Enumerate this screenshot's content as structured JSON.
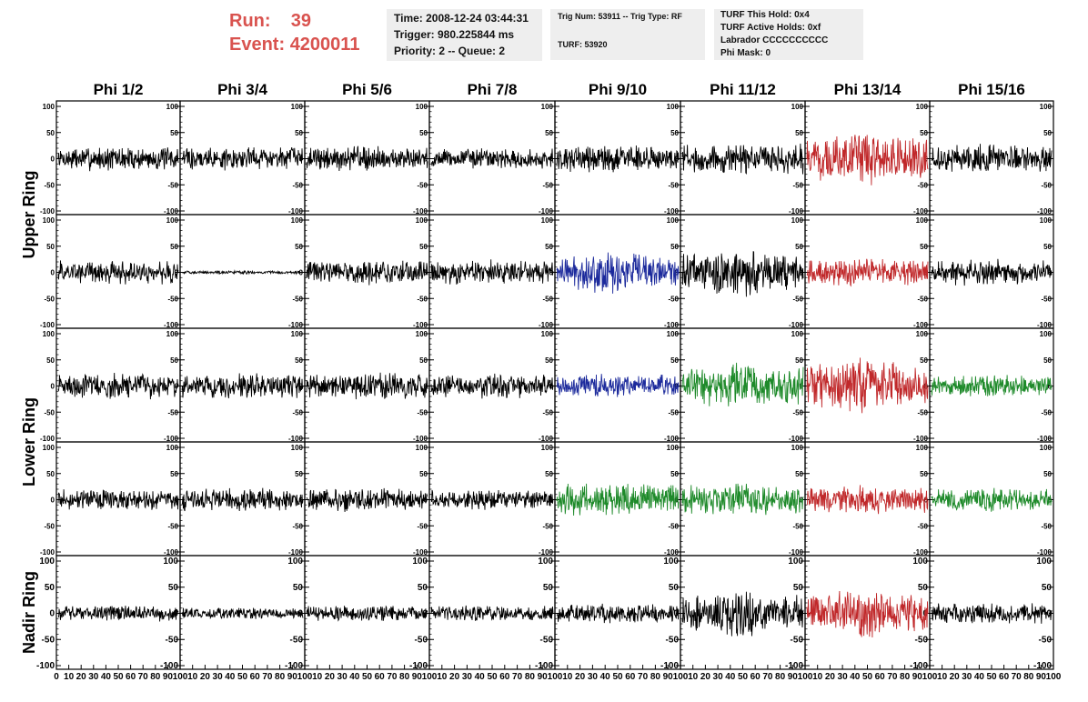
{
  "header": {
    "run_label": "Run:",
    "run_value": "39",
    "event_label": "Event:",
    "event_value": "4200011",
    "time": "Time: 2008-12-24 03:44:31",
    "trigger": "Trigger: 980.225844 ms",
    "priority": "Priority: 2 -- Queue: 2",
    "trig_num": "Trig Num: 53911 -- Trig Type: RF",
    "turf": "TURF: 53920",
    "turf_hold": "TURF This Hold: 0x4",
    "turf_active": "TURF Active Holds: 0xf",
    "labrador": "Labrador CCCCCCCCCC",
    "phi_mask": "Phi Mask: 0"
  },
  "colors": {
    "header_red": "#d9534f",
    "trace_black": "#000000",
    "trace_red": "#c0282a",
    "trace_blue": "#1c2a9c",
    "trace_green": "#1e8a2a"
  },
  "chart_data": {
    "type": "line",
    "columns": [
      "Phi 1/2",
      "Phi 3/4",
      "Phi 5/6",
      "Phi 7/8",
      "Phi 9/10",
      "Phi 11/12",
      "Phi 13/14",
      "Phi 15/16"
    ],
    "row_groups": [
      "Upper Ring",
      "Lower Ring",
      "Nadir Ring"
    ],
    "rows": 5,
    "ylim": [
      -100,
      100
    ],
    "y_ticks": [
      100,
      50,
      0,
      -50,
      -100
    ],
    "xlim": [
      0,
      100
    ],
    "x_ticks": [
      0,
      10,
      20,
      30,
      40,
      50,
      60,
      70,
      80,
      90,
      100
    ],
    "trace_samples": 260,
    "trace_colors": [
      [
        "black",
        "black",
        "black",
        "black",
        "black",
        "black",
        "red",
        "black"
      ],
      [
        "black",
        "black",
        "black",
        "black",
        "blue",
        "black",
        "red",
        "black"
      ],
      [
        "black",
        "black",
        "black",
        "black",
        "blue",
        "green",
        "red",
        "green"
      ],
      [
        "black",
        "black",
        "black",
        "black",
        "green",
        "green",
        "red",
        "green"
      ],
      [
        "black",
        "black",
        "black",
        "black",
        "black",
        "black",
        "red",
        "black"
      ]
    ],
    "trace_amplitudes": [
      [
        15,
        15,
        15,
        13,
        17,
        19,
        26,
        17
      ],
      [
        15,
        2,
        15,
        15,
        21,
        24,
        17,
        16
      ],
      [
        16,
        15,
        16,
        15,
        15,
        24,
        29,
        13
      ],
      [
        13,
        14,
        15,
        12,
        20,
        19,
        18,
        14
      ],
      [
        10,
        7,
        10,
        10,
        12,
        23,
        25,
        13
      ]
    ],
    "grid": false
  }
}
